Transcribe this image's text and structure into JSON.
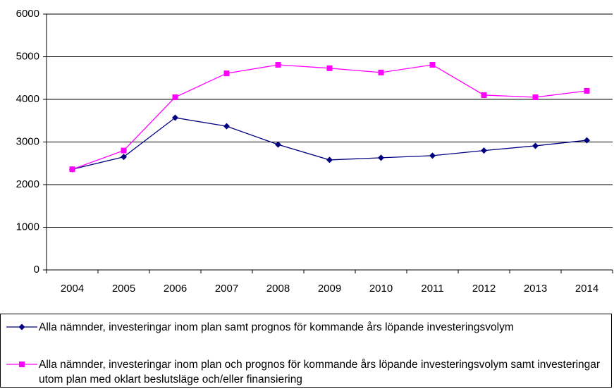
{
  "chart_data": {
    "type": "line",
    "categories": [
      "2004",
      "2005",
      "2006",
      "2007",
      "2008",
      "2009",
      "2010",
      "2011",
      "2012",
      "2013",
      "2014"
    ],
    "series": [
      {
        "name": "Alla nämnder, investeringar inom plan samt prognos för kommande års löpande investeringsvolym",
        "color": "#000080",
        "marker": "diamond",
        "values": [
          2360,
          2650,
          3570,
          3370,
          2940,
          2580,
          2630,
          2680,
          2800,
          2910,
          3040
        ]
      },
      {
        "name": "Alla nämnder, investeringar inom plan och prognos för kommande års löpande investeringsvolym samt investeringar utom plan med oklart beslutsläge och/eller finansiering",
        "color": "#ff00ff",
        "marker": "square",
        "values": [
          2360,
          2800,
          4050,
          4610,
          4810,
          4730,
          4630,
          4810,
          4100,
          4050,
          4200
        ]
      }
    ],
    "ylim": [
      0,
      6000
    ],
    "yticks": [
      0,
      1000,
      2000,
      3000,
      4000,
      5000,
      6000
    ],
    "grid": true,
    "legend": "bottom"
  }
}
